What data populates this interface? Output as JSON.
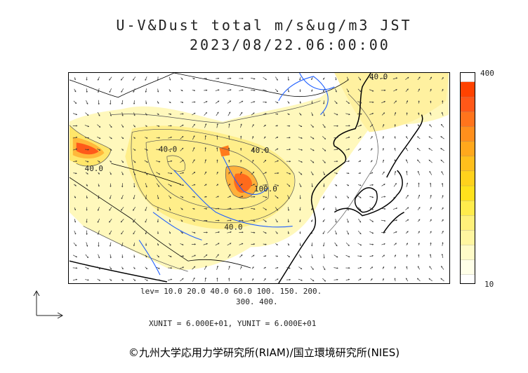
{
  "title": {
    "line1": "U-V&Dust total m/s&ug/m3 JST",
    "line2": "2023/08/22.06:00:00"
  },
  "colorbar": {
    "max_label": "400",
    "min_label": "10",
    "colors": [
      "#ffffe8",
      "#fffbc8",
      "#fff6a0",
      "#fff17a",
      "#ffec4c",
      "#ffe21c",
      "#ffd21c",
      "#ffbf1c",
      "#ffa81c",
      "#ff8f1c",
      "#ff741c",
      "#ff5818",
      "#ff4200"
    ]
  },
  "contour_labels": [
    "40.0",
    "40.0",
    "40.0",
    "40.0",
    "40.0",
    "100.0"
  ],
  "levels": {
    "line1": "lev= 10.0 20.0 40.0 60.0 100. 150. 200.",
    "line2": "300. 400."
  },
  "units_text": "XUNIT = 6.000E+01, YUNIT = 6.000E+01",
  "copyright": "©九州大学応用力学研究所(RIAM)/国立環境研究所(NIES)",
  "colors": {
    "coastline": "#000000",
    "river": "#1f5fff",
    "contour": "#555555",
    "vector": "#333333"
  },
  "icons": [
    "reference-vector-icon"
  ]
}
